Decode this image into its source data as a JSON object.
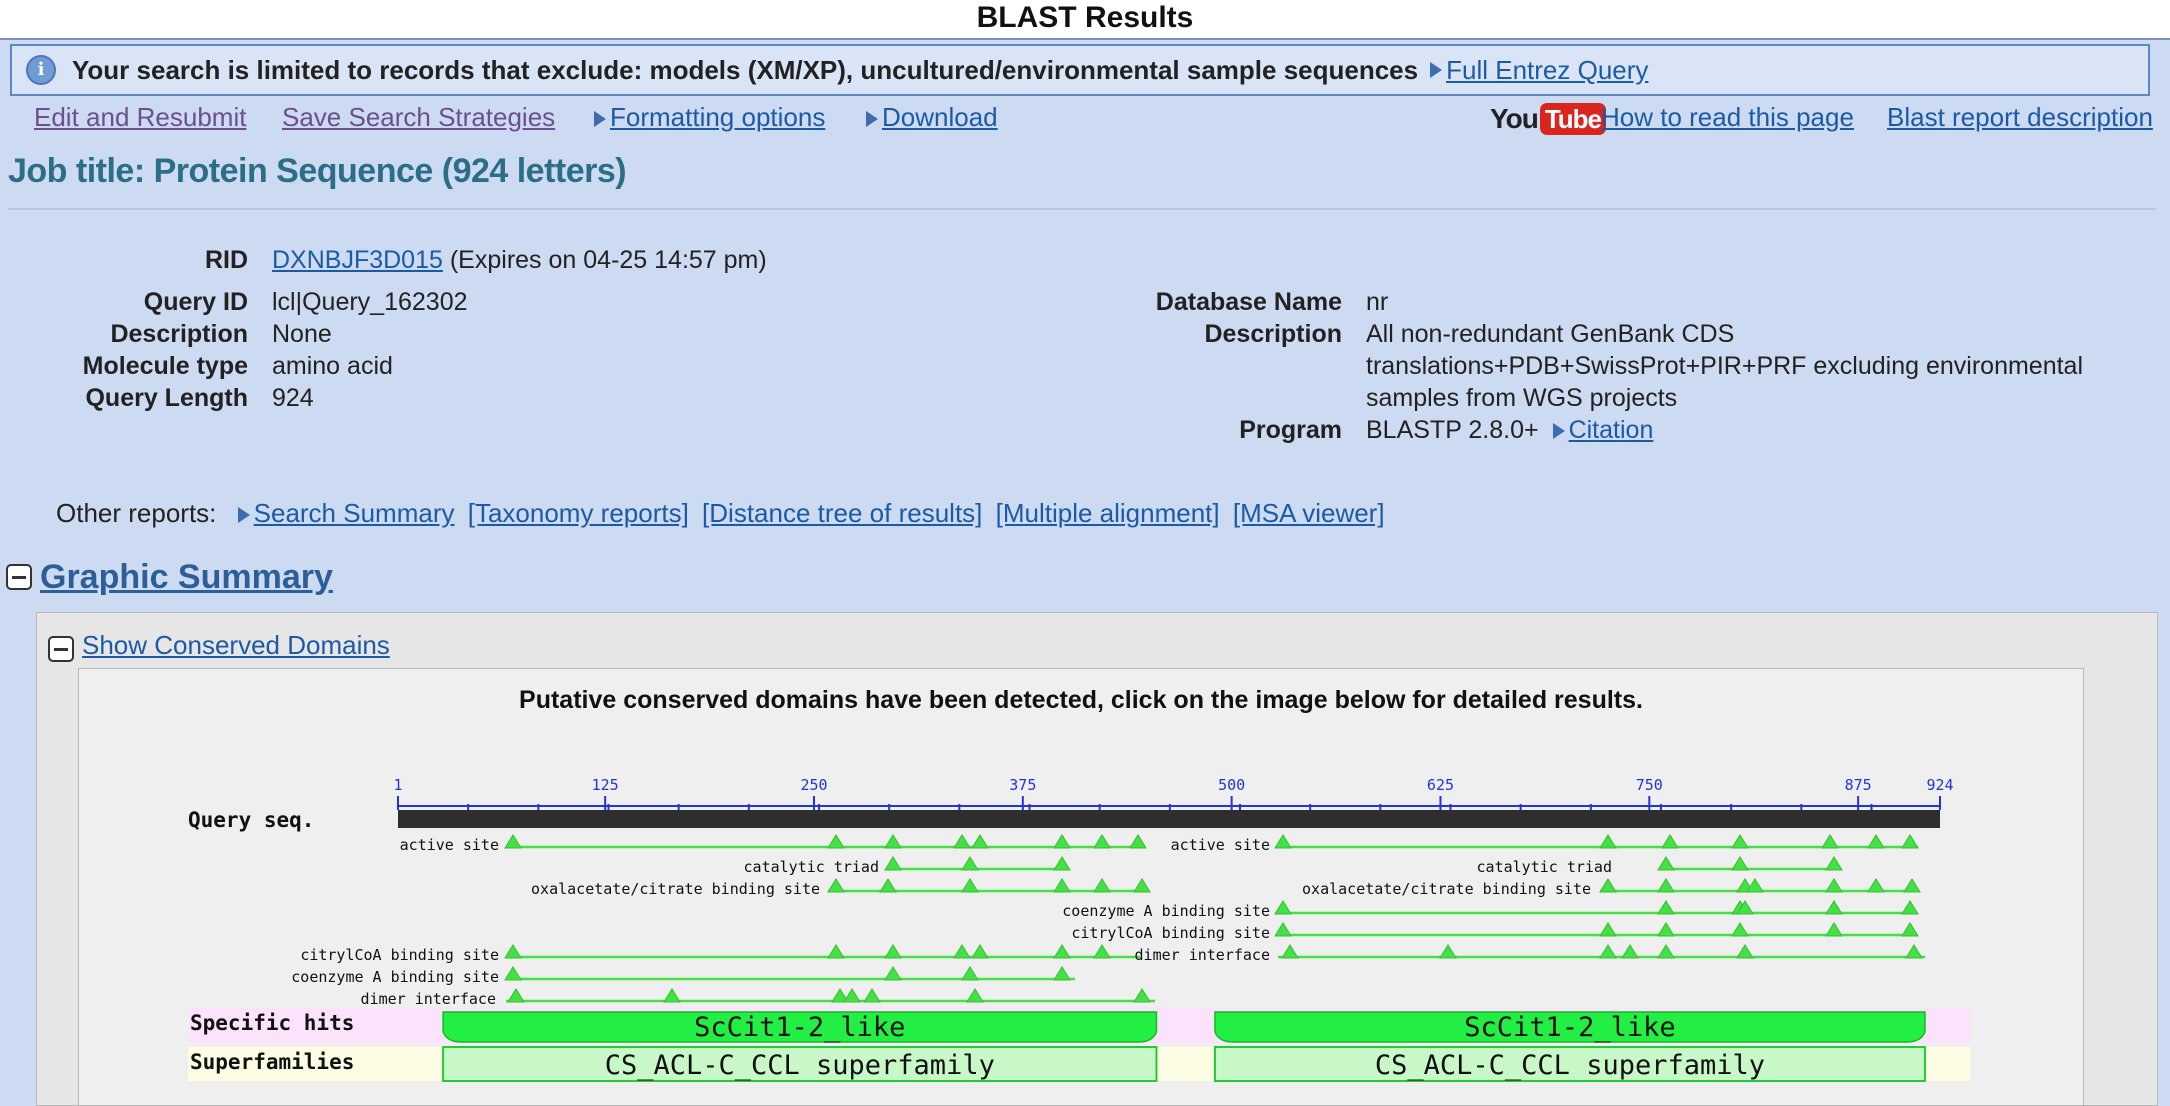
{
  "page": {
    "title": "BLAST Results"
  },
  "notice": {
    "text": "Your search is limited to records that exclude: models (XM/XP), uncultured/environmental sample sequences",
    "link": "Full Entrez Query"
  },
  "toolbar": {
    "edit_resubmit": "Edit and Resubmit",
    "save_strategies": "Save Search Strategies",
    "formatting_options": "Formatting options",
    "download": "Download",
    "youtube_you": "You",
    "youtube_tube": "Tube",
    "how_to_read": "How to read this page",
    "report_description": "Blast report description"
  },
  "job": {
    "title": "Job title: Protein Sequence (924 letters)"
  },
  "query_info": {
    "rid_label": "RID",
    "rid_value": "DXNBJF3D015",
    "rid_expires": "(Expires on 04-25 14:57 pm)",
    "query_id_label": "Query ID",
    "query_id_value": "lcl|Query_162302",
    "description_label": "Description",
    "description_value": "None",
    "molecule_type_label": "Molecule type",
    "molecule_type_value": "amino acid",
    "query_length_label": "Query Length",
    "query_length_value": "924"
  },
  "database_info": {
    "db_name_label": "Database Name",
    "db_name_value": "nr",
    "description_label": "Description",
    "description_lines": [
      "All non-redundant GenBank CDS",
      "translations+PDB+SwissProt+PIR+PRF excluding environmental",
      "samples from WGS projects"
    ],
    "program_label": "Program",
    "program_value": "BLASTP 2.8.0+",
    "citation": "Citation"
  },
  "other_reports": {
    "label": "Other reports:",
    "search_summary": "Search Summary",
    "taxonomy": "[Taxonomy reports]",
    "distance_tree": "[Distance tree of results]",
    "multiple_alignment": "[Multiple alignment]",
    "msa_viewer": "[MSA viewer]"
  },
  "graphic_summary": {
    "title": "Graphic Summary",
    "conserved_domains_link": "Show Conserved Domains",
    "putative_text": "Putative conserved domains have been detected, click on the image below for detailed results."
  },
  "domain_graphic": {
    "query_label": "Query seq.",
    "query_length": 924,
    "ticks": [
      1,
      125,
      250,
      375,
      500,
      625,
      750,
      875,
      924
    ],
    "colors": {
      "track_bg": "#2e2e2e",
      "site_green": "#44e044",
      "hit_green": "#22ee44",
      "superfamily_fill": "#c8f7c8",
      "specific_row_bg": "#fbe3fb",
      "super_row_bg": "#fdfde3",
      "tick_blue": "#2233dd"
    },
    "site_labels_left": [
      "active site",
      "catalytic triad",
      "oxalacetate/citrate binding site",
      "citrylCoA binding site",
      "coenzyme A binding site",
      "dimer interface"
    ],
    "site_labels_right": [
      "active site",
      "catalytic triad",
      "oxalacetate/citrate binding site",
      "coenzyme A binding site",
      "citrylCoA binding site",
      "dimer interface"
    ],
    "specific_hits_label": "Specific hits",
    "superfamilies_label": "Superfamilies",
    "specific_hits": [
      {
        "name": "ScCit1-2_like",
        "start": 28,
        "end": 455
      },
      {
        "name": "ScCit1-2_like",
        "start": 490,
        "end": 915
      }
    ],
    "superfamilies": [
      {
        "name": "CS_ACL-C_CCL superfamily",
        "start": 28,
        "end": 455
      },
      {
        "name": "CS_ACL-C_CCL superfamily",
        "start": 490,
        "end": 915
      }
    ]
  }
}
